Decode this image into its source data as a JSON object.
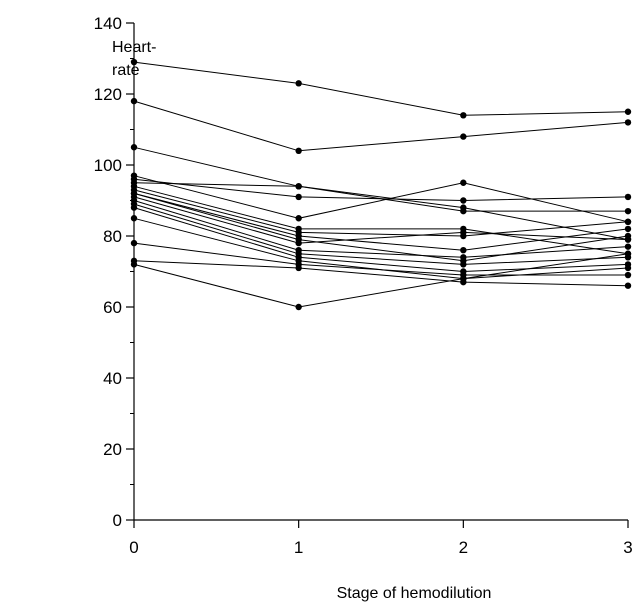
{
  "chart_data": {
    "type": "line",
    "title": "",
    "xlabel": "Stage of hemodilution",
    "ylabel_lines": [
      "Heart-",
      "rate"
    ],
    "x": [
      0,
      1,
      2,
      3
    ],
    "xlim": [
      0,
      3
    ],
    "ylim": [
      0,
      140
    ],
    "x_ticks": [
      "0",
      "1",
      "2",
      "3"
    ],
    "y_ticks": [
      "0",
      "20",
      "40",
      "60",
      "80",
      "100",
      "120",
      "140"
    ],
    "grid": false,
    "legend": "none",
    "line_color": "#000000",
    "series": [
      {
        "values": [
          129,
          123,
          114,
          115
        ]
      },
      {
        "values": [
          118,
          104,
          108,
          112
        ]
      },
      {
        "values": [
          105,
          94,
          87,
          87
        ]
      },
      {
        "values": [
          97,
          85,
          95,
          84
        ]
      },
      {
        "values": [
          96,
          91,
          90,
          91
        ]
      },
      {
        "values": [
          95,
          94,
          88,
          79
        ]
      },
      {
        "values": [
          94,
          82,
          82,
          75
        ]
      },
      {
        "values": [
          93,
          81,
          80,
          84
        ]
      },
      {
        "values": [
          92,
          80,
          76,
          82
        ]
      },
      {
        "values": [
          92,
          79,
          73,
          80
        ]
      },
      {
        "values": [
          91,
          78,
          81,
          79
        ]
      },
      {
        "values": [
          90,
          76,
          74,
          77
        ]
      },
      {
        "values": [
          89,
          75,
          72,
          74
        ]
      },
      {
        "values": [
          88,
          74,
          70,
          72
        ]
      },
      {
        "values": [
          85,
          73,
          68,
          71
        ]
      },
      {
        "values": [
          78,
          72,
          69,
          69
        ]
      },
      {
        "values": [
          73,
          71,
          67,
          66
        ]
      },
      {
        "values": [
          72,
          60,
          68,
          75
        ]
      }
    ]
  }
}
